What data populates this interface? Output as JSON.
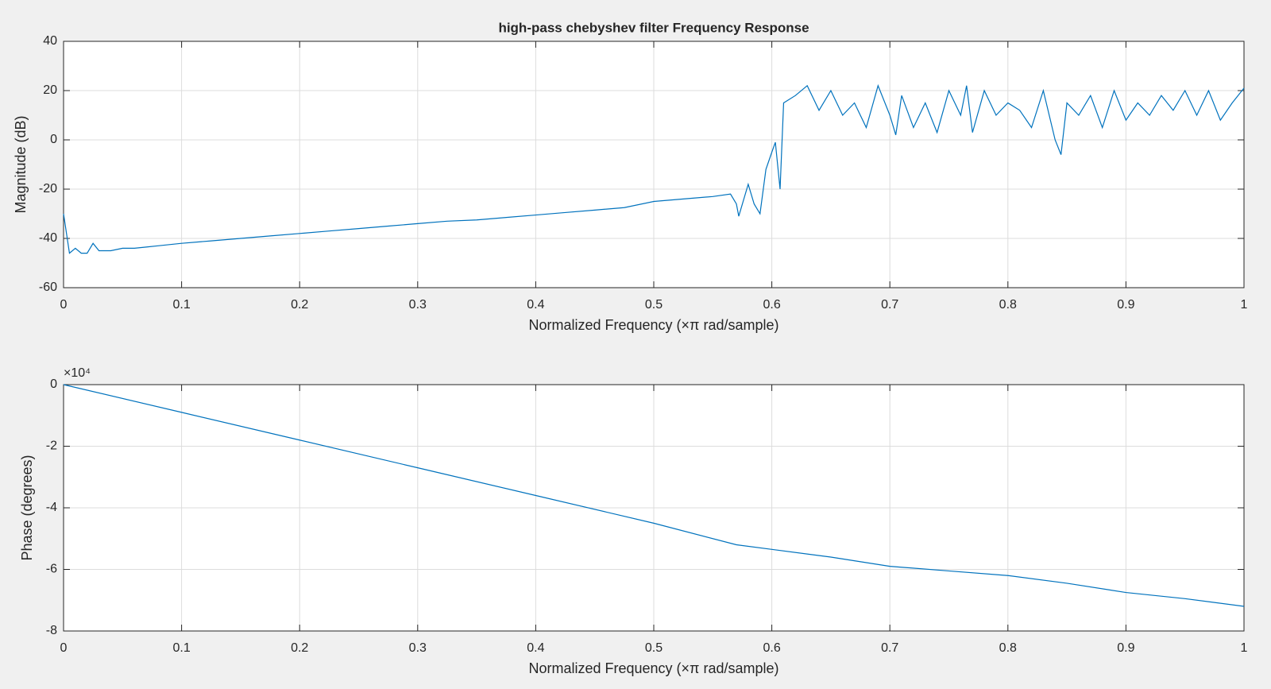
{
  "chart_data": [
    {
      "type": "line",
      "title": "high-pass chebyshev filter Frequency Response",
      "x_label": "Normalized Frequency  (×π rad/sample)",
      "y_label": "Magnitude (dB)",
      "x": [
        0,
        0.005,
        0.01,
        0.015,
        0.02,
        0.025,
        0.03,
        0.04,
        0.05,
        0.06,
        0.07,
        0.08,
        0.1,
        0.125,
        0.15,
        0.175,
        0.2,
        0.225,
        0.25,
        0.275,
        0.3,
        0.325,
        0.35,
        0.375,
        0.4,
        0.425,
        0.45,
        0.475,
        0.5,
        0.525,
        0.55,
        0.565,
        0.57,
        0.572,
        0.58,
        0.585,
        0.59,
        0.595,
        0.6,
        0.603,
        0.607,
        0.61,
        0.62,
        0.63,
        0.64,
        0.65,
        0.66,
        0.67,
        0.68,
        0.69,
        0.7,
        0.705,
        0.71,
        0.72,
        0.73,
        0.74,
        0.75,
        0.76,
        0.765,
        0.77,
        0.78,
        0.79,
        0.8,
        0.81,
        0.82,
        0.83,
        0.84,
        0.845,
        0.85,
        0.86,
        0.87,
        0.88,
        0.89,
        0.9,
        0.91,
        0.92,
        0.93,
        0.94,
        0.95,
        0.96,
        0.97,
        0.98,
        0.99,
        1
      ],
      "values": [
        -30,
        -46,
        -44,
        -46,
        -46,
        -42,
        -45,
        -45,
        -44,
        -44,
        -43.5,
        -43,
        -42,
        -41,
        -40,
        -39,
        -38,
        -37,
        -36,
        -35,
        -34,
        -33,
        -32.5,
        -31.5,
        -30.5,
        -29.5,
        -28.5,
        -27.5,
        -25,
        -24,
        -23,
        -22,
        -26,
        -31,
        -18,
        -26,
        -30,
        -12,
        -5,
        -1,
        -20,
        15,
        18,
        22,
        12,
        20,
        10,
        15,
        5,
        22,
        10,
        2,
        18,
        5,
        15,
        3,
        20,
        10,
        22,
        3,
        20,
        10,
        15,
        12,
        5,
        20,
        0,
        -6,
        15,
        10,
        18,
        5,
        20,
        8,
        15,
        10,
        18,
        12,
        20,
        10,
        20,
        8,
        15,
        21
      ],
      "color": "#0072bd",
      "xlim": [
        0,
        1
      ],
      "xticks": [
        0,
        0.1,
        0.2,
        0.3,
        0.4,
        0.5,
        0.6,
        0.7,
        0.8,
        0.9,
        1
      ],
      "ylim": [
        -60,
        40
      ],
      "yticks": [
        -60,
        -40,
        -20,
        0,
        20,
        40
      ],
      "grid": true
    },
    {
      "type": "line",
      "x_label": "Normalized Frequency  (×π rad/sample)",
      "y_label": "Phase (degrees)",
      "y_scale_label": "×10⁴",
      "x": [
        0,
        0.1,
        0.2,
        0.3,
        0.4,
        0.5,
        0.57,
        0.6,
        0.65,
        0.7,
        0.75,
        0.8,
        0.85,
        0.9,
        0.95,
        1
      ],
      "values": [
        0,
        -0.9,
        -1.8,
        -2.7,
        -3.6,
        -4.5,
        -5.2,
        -5.35,
        -5.6,
        -5.9,
        -6.05,
        -6.2,
        -6.45,
        -6.75,
        -6.95,
        -7.2
      ],
      "color": "#0072bd",
      "xlim": [
        0,
        1
      ],
      "xticks": [
        0,
        0.1,
        0.2,
        0.3,
        0.4,
        0.5,
        0.6,
        0.7,
        0.8,
        0.9,
        1
      ],
      "ylim": [
        -8,
        0
      ],
      "yticks": [
        -8,
        -6,
        -4,
        -2,
        0
      ],
      "grid": true
    }
  ]
}
